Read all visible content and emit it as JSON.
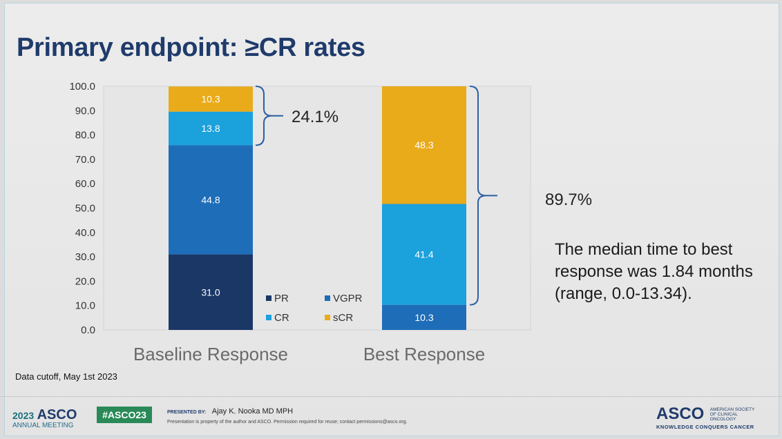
{
  "title": "Primary endpoint: ≥CR rates",
  "chart_data": {
    "type": "bar",
    "stacked": true,
    "categories": [
      "Baseline Response",
      "Best Response"
    ],
    "series": [
      {
        "name": "PR",
        "color": "#1b3766",
        "values": [
          31.0,
          0
        ]
      },
      {
        "name": "VGPR",
        "color": "#1e6db8",
        "values": [
          44.8,
          10.3
        ]
      },
      {
        "name": "CR",
        "color": "#1ba1dc",
        "values": [
          13.8,
          41.4
        ]
      },
      {
        "name": "sCR",
        "color": "#e9ab1a",
        "values": [
          10.3,
          48.3
        ]
      }
    ],
    "ylim": [
      0,
      100
    ],
    "yticks": [
      "0.0",
      "10.0",
      "20.0",
      "30.0",
      "40.0",
      "50.0",
      "60.0",
      "70.0",
      "80.0",
      "90.0",
      "100.0"
    ],
    "legend": [
      "PR",
      "VGPR",
      "CR",
      "sCR"
    ],
    "legend_position": "inside-bottom-center",
    "bracket_labels": [
      "24.1%",
      "89.7%"
    ]
  },
  "note": "The median time to best response was 1.84 months (range, 0.0-13.34).",
  "data_cutoff": "Data cutoff, May 1st 2023",
  "footer": {
    "year": "2023",
    "asco": "ASCO",
    "meeting": "ANNUAL MEETING",
    "hashtag": "#ASCO23",
    "presented_by_label": "PRESENTED BY:",
    "presenter": "Ajay K. Nooka MD MPH",
    "disclaimer": "Presentation is property of the author and ASCO. Permission required for reuse; contact permissions@asco.org.",
    "logo": "ASCO",
    "society": "AMERICAN SOCIETY OF CLINICAL ONCOLOGY",
    "tagline": "KNOWLEDGE CONQUERS CANCER"
  }
}
